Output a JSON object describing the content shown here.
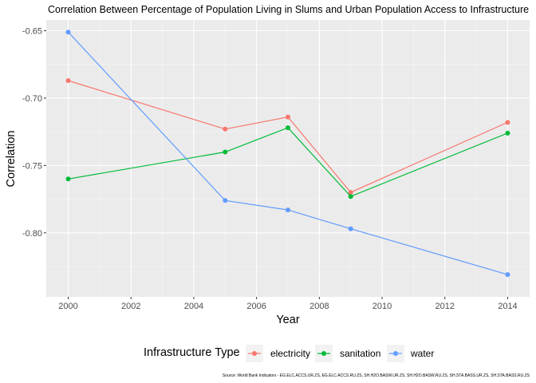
{
  "chart_data": {
    "type": "line",
    "title": "Correlation Between Percentage of Population Living in Slums and Urban Population Access to Infrastructure",
    "xlabel": "Year",
    "ylabel": "Correlation",
    "xlim": [
      1999.3,
      2014.7
    ],
    "ylim": [
      -0.8475,
      -0.642
    ],
    "x_ticks": [
      2000,
      2002,
      2004,
      2006,
      2008,
      2010,
      2012,
      2014
    ],
    "y_ticks": [
      -0.65,
      -0.7,
      -0.75,
      -0.8
    ],
    "y_tick_labels": [
      "-0.65",
      "-0.70",
      "-0.75",
      "-0.80"
    ],
    "grid": true,
    "legend_position": "bottom",
    "legend_title": "Infrastructure Type",
    "caption": "Source: World Bank Indicators - EG.ELC.ACCS.UR.ZS, EG.ELC.ACCS.RU.ZS, SH.H2O.BASW.UR.ZS, SH.H2O.BASW.RU.ZS, SH.STA.BASS.UR.ZS, SH.STA.BASS.RU.ZS",
    "series": [
      {
        "name": "electricity",
        "color": "#F8766D",
        "x": [
          2000,
          2005,
          2007,
          2009,
          2014
        ],
        "y": [
          -0.687,
          -0.723,
          -0.714,
          -0.77,
          -0.718
        ]
      },
      {
        "name": "sanitation",
        "color": "#00BA38",
        "x": [
          2000,
          2005,
          2007,
          2009,
          2014
        ],
        "y": [
          -0.76,
          -0.74,
          -0.722,
          -0.773,
          -0.726
        ]
      },
      {
        "name": "water",
        "color": "#619CFF",
        "x": [
          2000,
          2005,
          2007,
          2009,
          2014
        ],
        "y": [
          -0.651,
          -0.776,
          -0.783,
          -0.797,
          -0.831
        ]
      }
    ]
  }
}
